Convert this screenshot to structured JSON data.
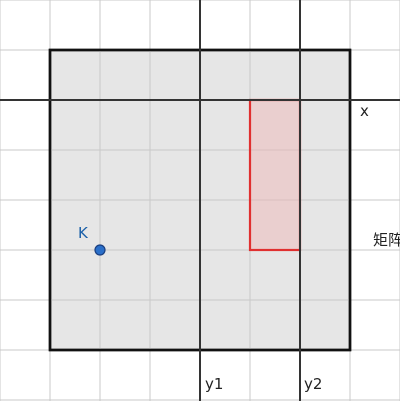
{
  "colors": {
    "background": "#ffffff",
    "grid": "#c8c8c8",
    "matrix_fill": "#e6e6e6",
    "matrix_border": "#111111",
    "axis_line": "#333333",
    "rect_border": "#e03030",
    "rect_fill": "#f0b4b4",
    "point_fill": "#2a6fc9",
    "point_stroke": "#1a3f80"
  },
  "labels": {
    "x_axis": "x",
    "y1": "y1",
    "y2": "y2",
    "matrix": "矩阵",
    "point": "K"
  }
}
